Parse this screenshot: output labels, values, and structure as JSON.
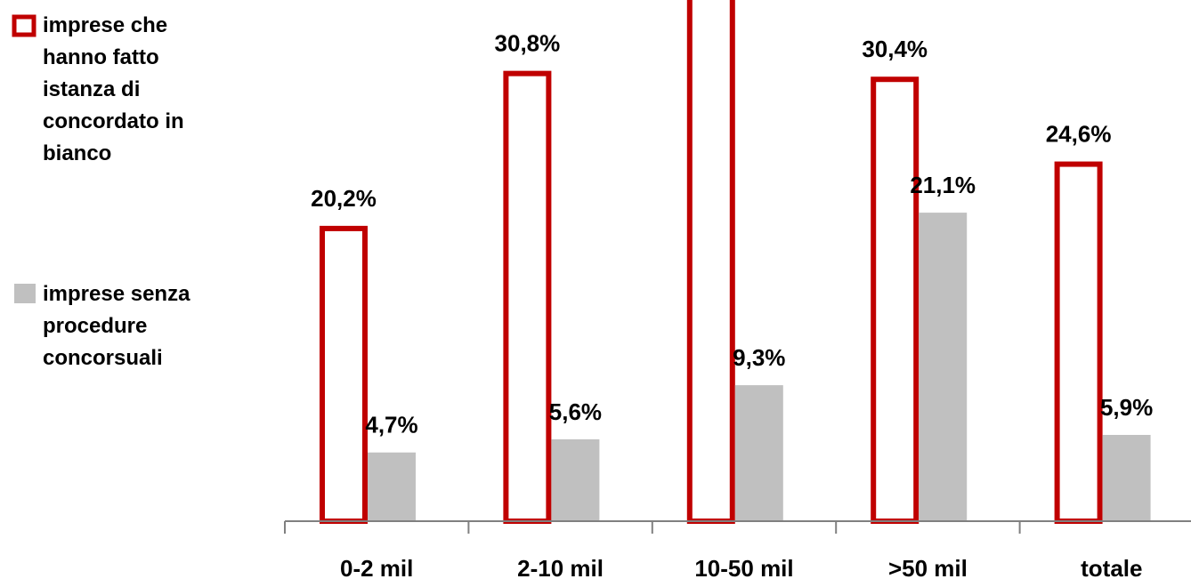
{
  "chart_data": {
    "type": "bar",
    "categories": [
      "0-2 mil",
      "2-10 mil",
      "10-50 mil",
      ">50 mil",
      "totale"
    ],
    "series": [
      {
        "name": "imprese che hanno fatto istanza di concordato in bianco",
        "values": [
          20.2,
          30.8,
          36.8,
          30.4,
          24.6
        ],
        "labels": [
          "20,2%",
          "30,8%",
          "",
          "30,4%",
          "24,6%"
        ],
        "style": "outline",
        "color": "#c00000"
      },
      {
        "name": "imprese senza procedure concorsuali",
        "values": [
          4.7,
          5.6,
          9.3,
          21.1,
          5.9
        ],
        "labels": [
          "4,7%",
          "5,6%",
          "9,3%",
          "21,1%",
          "5,9%"
        ],
        "style": "fill",
        "color": "#c0c0c0"
      }
    ],
    "title": "",
    "xlabel": "",
    "ylabel": "",
    "ylim": [
      0,
      36
    ],
    "grid": false,
    "legend": {
      "placement": "left",
      "entries": [
        {
          "lines": [
            "imprese che",
            "hanno fatto",
            "istanza di",
            "concordato in",
            "bianco"
          ],
          "style": "outline",
          "color": "#c00000"
        },
        {
          "lines": [
            "imprese senza",
            "procedure",
            "concorsuali"
          ],
          "style": "fill",
          "color": "#c0c0c0"
        }
      ]
    },
    "axis_color": "#808080"
  }
}
